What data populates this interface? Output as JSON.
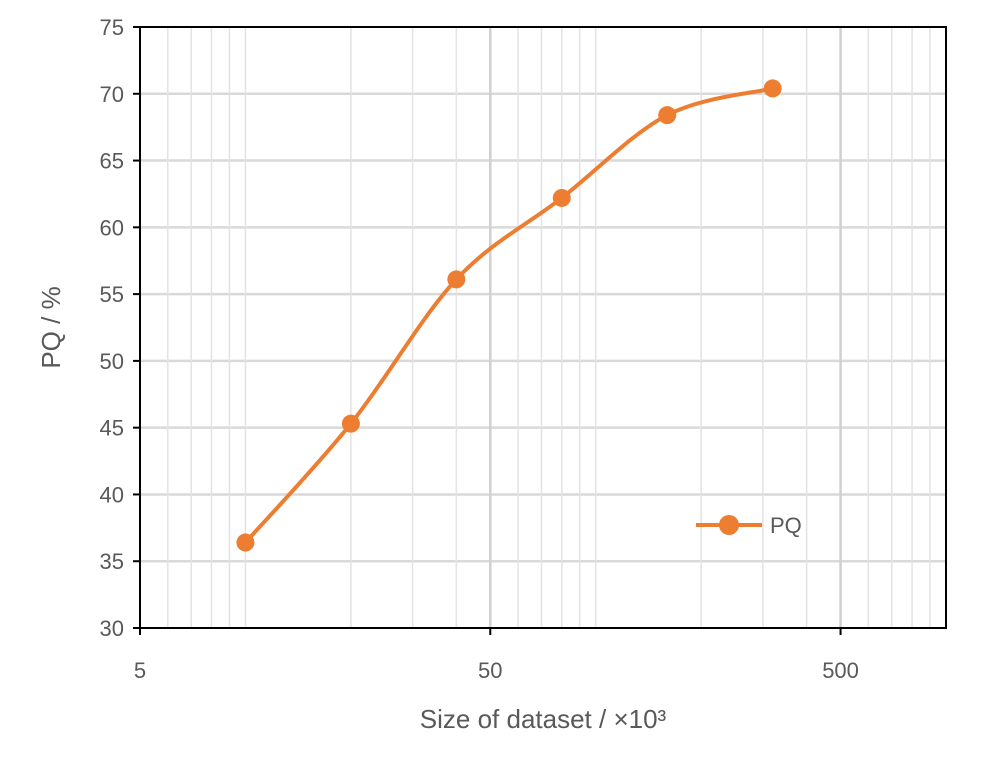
{
  "chart_data": {
    "type": "line",
    "xlabel": "Size of dataset / ×10³",
    "ylabel": "PQ / %",
    "x_scale": "log10",
    "xlim": [
      5,
      1000
    ],
    "ylim": [
      30,
      75
    ],
    "x_ticks": [
      5,
      50,
      500
    ],
    "x_tick_labels": [
      "5",
      "50",
      "500"
    ],
    "y_ticks": [
      30,
      35,
      40,
      45,
      50,
      55,
      60,
      65,
      70,
      75
    ],
    "y_tick_labels": [
      "30",
      "35",
      "40",
      "45",
      "50",
      "55",
      "60",
      "65",
      "70",
      "75"
    ],
    "grid": true,
    "legend_position": "lower-right",
    "series": [
      {
        "name": "PQ",
        "color": "#ED7D31",
        "smooth": true,
        "marker": "circle",
        "x": [
          10,
          20,
          40,
          80,
          160,
          320
        ],
        "y": [
          36.4,
          45.3,
          56.1,
          62.2,
          68.4,
          70.4
        ]
      }
    ]
  }
}
